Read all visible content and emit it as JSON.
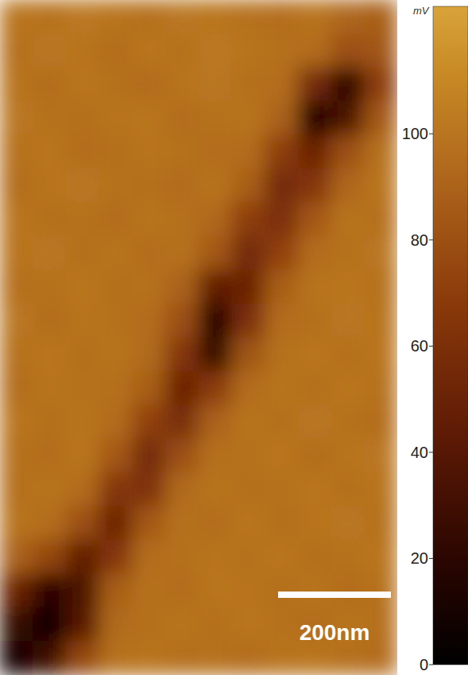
{
  "chart_data": {
    "type": "heatmap",
    "colorbar_label": "mV",
    "scale_bar": "200nm",
    "clim": [
      0,
      124
    ],
    "cticks": [
      0,
      20,
      40,
      60,
      80,
      100
    ],
    "cells": [
      [
        100,
        98,
        102,
        99,
        97,
        101,
        100,
        98,
        96,
        99,
        92,
        88
      ],
      [
        97,
        101,
        99,
        96,
        100,
        98,
        102,
        99,
        97,
        95,
        80,
        84
      ],
      [
        99,
        96,
        100,
        98,
        95,
        99,
        101,
        97,
        96,
        55,
        20,
        70
      ],
      [
        101,
        98,
        97,
        99,
        100,
        96,
        98,
        99,
        90,
        15,
        35,
        85
      ],
      [
        98,
        100,
        96,
        97,
        99,
        98,
        96,
        95,
        70,
        50,
        80,
        98
      ],
      [
        96,
        99,
        101,
        98,
        97,
        95,
        99,
        88,
        55,
        65,
        92,
        100
      ],
      [
        100,
        97,
        98,
        96,
        99,
        97,
        93,
        70,
        60,
        85,
        99,
        97
      ],
      [
        99,
        101,
        97,
        99,
        96,
        98,
        85,
        55,
        72,
        95,
        98,
        101
      ],
      [
        97,
        98,
        100,
        97,
        98,
        90,
        45,
        50,
        88,
        99,
        100,
        98
      ],
      [
        101,
        96,
        99,
        98,
        95,
        80,
        18,
        60,
        95,
        97,
        101,
        99
      ],
      [
        98,
        100,
        97,
        99,
        94,
        65,
        25,
        82,
        98,
        100,
        97,
        100
      ],
      [
        96,
        99,
        98,
        97,
        88,
        50,
        68,
        95,
        99,
        97,
        100,
        98
      ],
      [
        100,
        97,
        99,
        95,
        72,
        58,
        90,
        99,
        97,
        101,
        98,
        96
      ],
      [
        98,
        96,
        100,
        85,
        55,
        80,
        97,
        98,
        100,
        96,
        99,
        101
      ],
      [
        97,
        99,
        95,
        65,
        62,
        94,
        99,
        97,
        98,
        100,
        97,
        99
      ],
      [
        99,
        96,
        80,
        50,
        85,
        98,
        96,
        100,
        97,
        99,
        101,
        98
      ],
      [
        90,
        75,
        45,
        65,
        96,
        97,
        99,
        98,
        100,
        97,
        98,
        100
      ],
      [
        50,
        20,
        35,
        88,
        98,
        96,
        100,
        99,
        97,
        99,
        96,
        98
      ],
      [
        25,
        8,
        40,
        94,
        97,
        99,
        97,
        100,
        98,
        96,
        99,
        97
      ],
      [
        10,
        30,
        75,
        98,
        99,
        97,
        98,
        96,
        99,
        100,
        97,
        95
      ]
    ]
  }
}
